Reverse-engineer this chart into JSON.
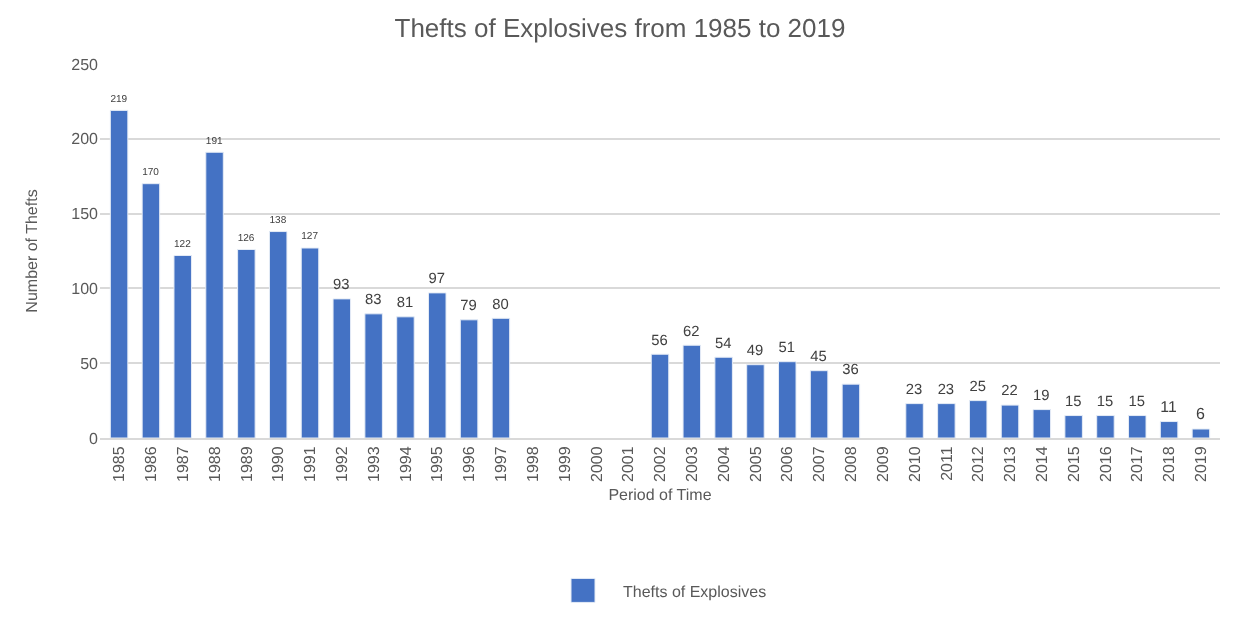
{
  "chart_data": {
    "type": "bar",
    "title": "Thefts of Explosives from 1985 to 2019",
    "xlabel": "Period of Time",
    "ylabel": "Number of Thefts",
    "categories": [
      "1985",
      "1986",
      "1987",
      "1988",
      "1989",
      "1990",
      "1991",
      "1992",
      "1993",
      "1994",
      "1995",
      "1996",
      "1997",
      "1998",
      "1999",
      "2000",
      "2001",
      "2002",
      "2003",
      "2004",
      "2005",
      "2006",
      "2007",
      "2008",
      "2009",
      "2010",
      "2011",
      "2012",
      "2013",
      "2014",
      "2015",
      "2016",
      "2017",
      "2018",
      "2019"
    ],
    "series": [
      {
        "name": "Thefts of Explosives",
        "color": "#4472c4",
        "values": [
          219,
          170,
          122,
          191,
          126,
          138,
          127,
          93,
          83,
          81,
          97,
          79,
          80,
          null,
          null,
          null,
          null,
          56,
          62,
          54,
          49,
          51,
          45,
          36,
          null,
          23,
          23,
          25,
          22,
          19,
          15,
          15,
          15,
          11,
          6
        ]
      }
    ],
    "ylim": [
      0,
      250
    ],
    "yticks": [
      0,
      50,
      100,
      150,
      200,
      250
    ],
    "grid": "y",
    "legend": "bottom",
    "data_labels": true
  }
}
